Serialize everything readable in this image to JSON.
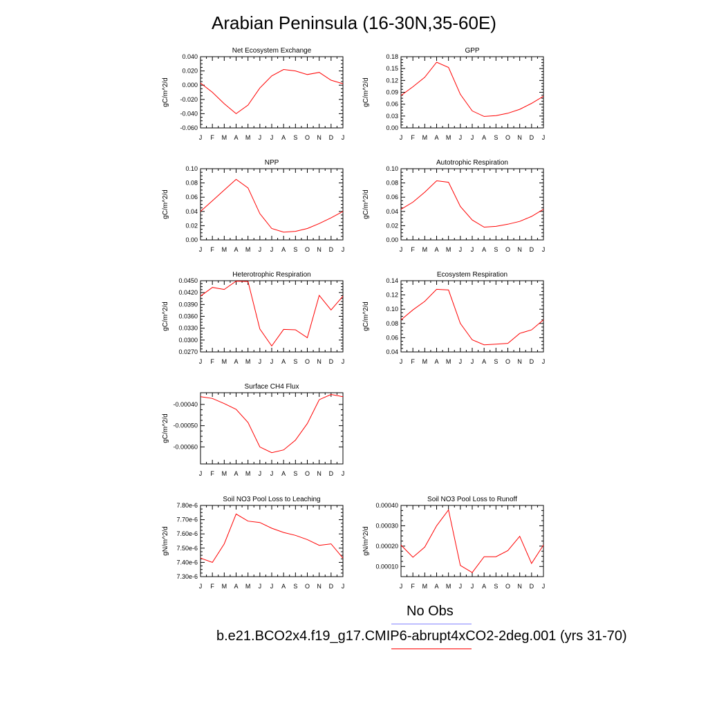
{
  "title": "Arabian Peninsula (16-30N,35-60E)",
  "month_ticks": [
    "J",
    "F",
    "M",
    "A",
    "M",
    "J",
    "J",
    "A",
    "S",
    "O",
    "N",
    "D",
    "J"
  ],
  "legend": {
    "obs_label": "No Obs",
    "obs_color": "#8080ff",
    "case_label": "b.e21.BCO2x4.f19_g17.CMIP6-abrupt4xCO2-2deg.001 (yrs 31-70)",
    "case_color": "#ff0000"
  },
  "line_color": "#ff0000",
  "chart_data": [
    {
      "type": "line",
      "title": "Net Ecosystem Exchange",
      "ylabel": "gC/m^2/d",
      "ylim": [
        -0.06,
        0.04
      ],
      "yticks": [
        "0.040",
        "0.020",
        "0.000",
        "-0.020",
        "-0.040",
        "-0.060"
      ],
      "values": [
        0.003,
        -0.01,
        -0.026,
        -0.04,
        -0.028,
        -0.004,
        0.013,
        0.022,
        0.02,
        0.015,
        0.018,
        0.007,
        0.002
      ]
    },
    {
      "type": "line",
      "title": "GPP",
      "ylabel": "gC/m^2/d",
      "ylim": [
        0.0,
        0.18
      ],
      "yticks": [
        "0.18",
        "0.15",
        "0.12",
        "0.09",
        "0.06",
        "0.03",
        "0.00"
      ],
      "values": [
        0.082,
        0.104,
        0.128,
        0.166,
        0.153,
        0.085,
        0.043,
        0.029,
        0.031,
        0.037,
        0.047,
        0.062,
        0.08
      ]
    },
    {
      "type": "line",
      "title": "NPP",
      "ylabel": "gC/m^2/d",
      "ylim": [
        0.0,
        0.1
      ],
      "yticks": [
        "0.10",
        "0.08",
        "0.06",
        "0.04",
        "0.02",
        "0.00"
      ],
      "values": [
        0.04,
        0.055,
        0.07,
        0.085,
        0.073,
        0.037,
        0.016,
        0.011,
        0.012,
        0.016,
        0.023,
        0.031,
        0.04
      ]
    },
    {
      "type": "line",
      "title": "Autotrophic Respiration",
      "ylabel": "gC/m^2/d",
      "ylim": [
        0.0,
        0.1
      ],
      "yticks": [
        "0.10",
        "0.08",
        "0.06",
        "0.04",
        "0.02",
        "0.00"
      ],
      "values": [
        0.043,
        0.053,
        0.067,
        0.083,
        0.081,
        0.047,
        0.028,
        0.018,
        0.019,
        0.022,
        0.026,
        0.033,
        0.043
      ]
    },
    {
      "type": "line",
      "title": "Heterotrophic Respiration",
      "ylabel": "gC/m^2/d",
      "ylim": [
        0.027,
        0.045
      ],
      "yticks": [
        "0.0450",
        "0.0420",
        "0.0390",
        "0.0360",
        "0.0330",
        "0.0300",
        "0.0270"
      ],
      "values": [
        0.0411,
        0.0433,
        0.0428,
        0.0449,
        0.0448,
        0.0328,
        0.0285,
        0.0327,
        0.0326,
        0.0306,
        0.0413,
        0.0376,
        0.0411
      ]
    },
    {
      "type": "line",
      "title": "Ecosystem Respiration",
      "ylabel": "gC/m^2/d",
      "ylim": [
        0.04,
        0.14
      ],
      "yticks": [
        "0.14",
        "0.12",
        "0.10",
        "0.08",
        "0.06",
        "0.04"
      ],
      "values": [
        0.085,
        0.099,
        0.111,
        0.128,
        0.127,
        0.08,
        0.057,
        0.05,
        0.051,
        0.052,
        0.066,
        0.071,
        0.085
      ]
    },
    {
      "type": "line",
      "title": "Surface CH4 Flux",
      "ylabel": "gC/m^2/d",
      "ylim": [
        -0.00068,
        -0.000345
      ],
      "yticks": [
        "-0.00040",
        "-0.00050",
        "-0.00060"
      ],
      "ytickvals": [
        -0.0004,
        -0.0005,
        -0.0006
      ],
      "values": [
        -0.000364,
        -0.000372,
        -0.000396,
        -0.000423,
        -0.000485,
        -0.0006,
        -0.000627,
        -0.000614,
        -0.000568,
        -0.00049,
        -0.000378,
        -0.000353,
        -0.000364
      ]
    },
    {
      "type": "line",
      "title": "Soil NO3 Pool Loss to Leaching",
      "ylabel": "gN/m^2/d",
      "ylim": [
        7.3e-06,
        7.8e-06
      ],
      "yticks": [
        "7.80e-6",
        "7.70e-6",
        "7.60e-6",
        "7.50e-6",
        "7.40e-6",
        "7.30e-6"
      ],
      "values": [
        7.43e-06,
        7.4e-06,
        7.53e-06,
        7.74e-06,
        7.69e-06,
        7.68e-06,
        7.64e-06,
        7.61e-06,
        7.59e-06,
        7.56e-06,
        7.52e-06,
        7.53e-06,
        7.43e-06
      ]
    },
    {
      "type": "line",
      "title": "Soil NO3 Pool Loss to Runoff",
      "ylabel": "gN/m^2/d",
      "ylim": [
        5e-05,
        0.0004
      ],
      "yticks": [
        "0.00040",
        "0.00030",
        "0.00020",
        "0.00010"
      ],
      "ytickvals": [
        0.0004,
        0.0003,
        0.0002,
        0.0001
      ],
      "values": [
        0.000205,
        0.000145,
        0.000195,
        0.0003,
        0.000378,
        0.000105,
        7e-05,
        0.000148,
        0.000148,
        0.000178,
        0.000248,
        0.000115,
        0.000205
      ]
    }
  ]
}
